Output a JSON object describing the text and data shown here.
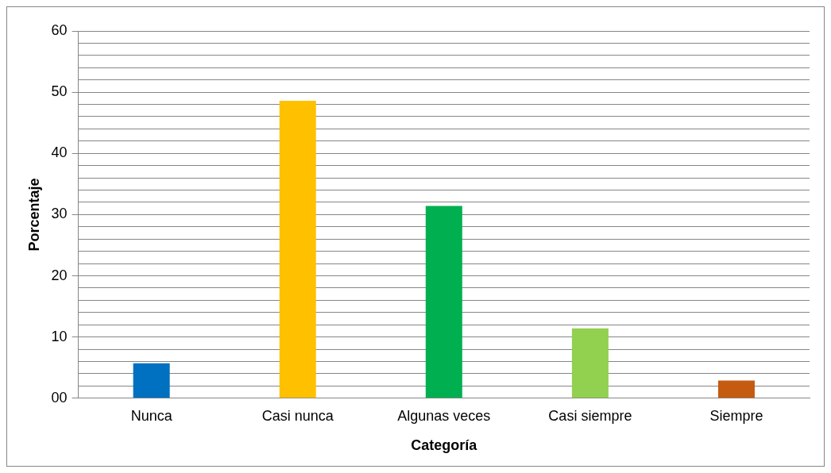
{
  "chart_data": {
    "type": "bar",
    "xlabel": "Categoría",
    "ylabel": "Porcentaje",
    "categories": [
      "Nunca",
      "Casi nunca",
      "Algunas veces",
      "Casi siempre",
      "Siempre"
    ],
    "values": [
      5.7,
      48.6,
      31.4,
      11.4,
      2.9
    ],
    "colors": [
      "#0070c0",
      "#ffc000",
      "#00b050",
      "#92d050",
      "#c55a11"
    ],
    "ylim": [
      0,
      60
    ],
    "yticks": [
      {
        "value": 0,
        "label": "00"
      },
      {
        "value": 2,
        "label": null
      },
      {
        "value": 4,
        "label": null
      },
      {
        "value": 6,
        "label": null
      },
      {
        "value": 8,
        "label": null
      },
      10,
      {
        "value": 12,
        "label": null
      },
      {
        "value": 14,
        "label": null
      },
      {
        "value": 16,
        "label": null
      },
      {
        "value": 18,
        "label": null
      },
      20,
      {
        "value": 22,
        "label": null
      },
      {
        "value": 24,
        "label": null
      },
      {
        "value": 26,
        "label": null
      },
      {
        "value": 28,
        "label": null
      },
      30,
      {
        "value": 32,
        "label": null
      },
      {
        "value": 34,
        "label": null
      },
      {
        "value": 36,
        "label": null
      },
      {
        "value": 38,
        "label": null
      },
      40,
      {
        "value": 42,
        "label": null
      },
      {
        "value": 44,
        "label": null
      },
      {
        "value": 46,
        "label": null
      },
      {
        "value": 48,
        "label": null
      },
      50,
      {
        "value": 52,
        "label": null
      },
      {
        "value": 54,
        "label": null
      },
      {
        "value": 56,
        "label": null
      },
      {
        "value": 58,
        "label": null
      },
      60
    ],
    "grid": "y",
    "legend": false
  }
}
